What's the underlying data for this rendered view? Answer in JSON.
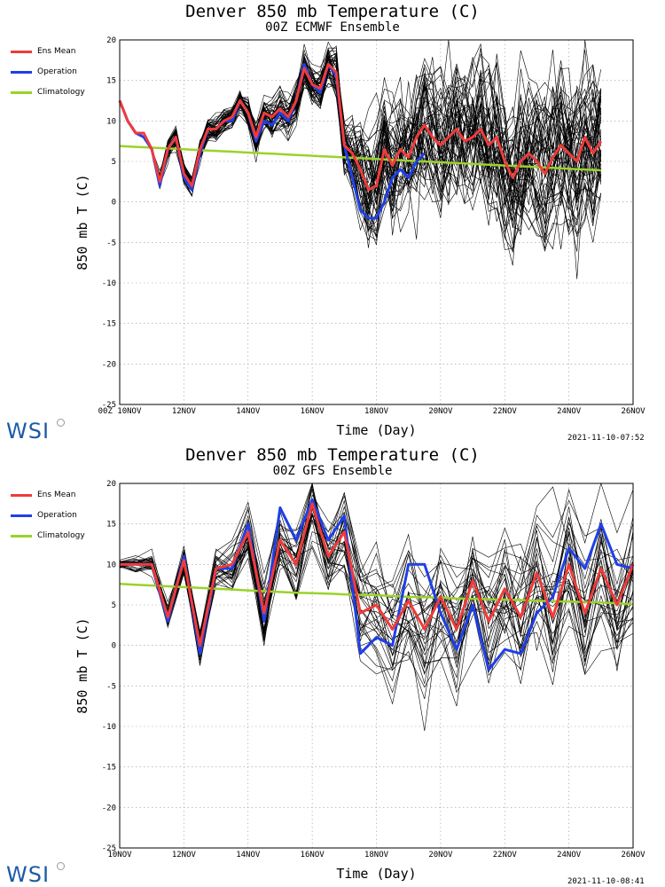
{
  "colors": {
    "members": "#000000",
    "ens_mean": "#ef3b3b",
    "operation": "#1f3fe6",
    "climatology": "#99d32a",
    "wsi_blue": "#1c5aa6"
  },
  "brand": {
    "logo_text": "WSI"
  },
  "legend": [
    {
      "label": "Ens Mean",
      "color": "#ef3b3b"
    },
    {
      "label": "Operation",
      "color": "#1f3fe6"
    },
    {
      "label": "Climatology",
      "color": "#99d32a"
    }
  ],
  "chart_data": [
    {
      "type": "line",
      "title": "Denver 850 mb Temperature (C)",
      "subtitle": "00Z ECMWF Ensemble",
      "xlabel": "Time (Day)",
      "ylabel": "850 mb T (C)",
      "timestamp": "2021-11-10-07:52",
      "grid": true,
      "ylim": [
        -25,
        20
      ],
      "yticks": [
        -25,
        -20,
        -15,
        -10,
        -5,
        0,
        5,
        10,
        15,
        20
      ],
      "xlim": [
        0,
        16
      ],
      "xtick_positions": [
        0,
        2,
        4,
        6,
        8,
        10,
        12,
        14,
        16
      ],
      "xtick_labels": [
        "00Z 10NOV",
        "12NOV",
        "14NOV",
        "16NOV",
        "18NOV",
        "20NOV",
        "22NOV",
        "24NOV",
        "26NOV"
      ],
      "x": [
        0,
        0.25,
        0.5,
        0.75,
        1,
        1.25,
        1.5,
        1.75,
        2,
        2.25,
        2.5,
        2.75,
        3,
        3.25,
        3.5,
        3.75,
        4,
        4.25,
        4.5,
        4.75,
        5,
        5.25,
        5.5,
        5.75,
        6,
        6.25,
        6.5,
        6.75,
        7,
        7.25,
        7.5,
        7.75,
        8,
        8.25,
        8.5,
        8.75,
        9,
        9.25,
        9.5,
        9.75,
        10,
        10.25,
        10.5,
        10.75,
        11,
        11.25,
        11.5,
        11.75,
        12,
        12.25,
        12.5,
        12.75,
        13,
        13.25,
        13.5,
        13.75,
        14,
        14.25,
        14.5,
        14.75,
        15
      ],
      "series": [
        {
          "name": "Ens Mean",
          "role": "ens_mean",
          "values": [
            12.5,
            10,
            8.5,
            8.5,
            6.5,
            2.5,
            6.5,
            8,
            3.5,
            2,
            6.5,
            9,
            9,
            10,
            10.5,
            12.5,
            11,
            8,
            11,
            10.5,
            11.5,
            10.5,
            12.5,
            16.5,
            14.5,
            14,
            17,
            16,
            7,
            6,
            4,
            1.5,
            2,
            6.5,
            4.5,
            6.5,
            5.5,
            8,
            9.5,
            8,
            7,
            8,
            9,
            7.5,
            8,
            9,
            7,
            8,
            5,
            3,
            5,
            6,
            5,
            3.5,
            5.5,
            7,
            6,
            5,
            8,
            6,
            7.5
          ]
        },
        {
          "name": "Operation",
          "role": "operation",
          "values": [
            12.5,
            10,
            8.5,
            8,
            6.5,
            2,
            6.5,
            8,
            3,
            1.5,
            6,
            9,
            9,
            10,
            10,
            12.5,
            11,
            7.5,
            10,
            9.5,
            11,
            10,
            12.5,
            17,
            14.5,
            13.5,
            17,
            15.5,
            7,
            3,
            -1,
            -2,
            -2,
            0,
            3,
            4,
            3,
            5,
            6,
            null,
            null,
            null,
            null,
            null,
            null,
            null,
            null,
            null,
            null,
            null,
            null,
            null,
            null,
            null,
            null,
            null,
            null,
            null,
            null,
            null,
            null
          ]
        },
        {
          "name": "Climatology",
          "role": "climatology",
          "values": [
            6.9,
            6.85,
            6.8,
            6.75,
            6.7,
            6.65,
            6.6,
            6.55,
            6.5,
            6.45,
            6.4,
            6.35,
            6.3,
            6.25,
            6.2,
            6.15,
            6.1,
            6.05,
            6.0,
            5.95,
            5.9,
            5.85,
            5.8,
            5.75,
            5.7,
            5.65,
            5.6,
            5.55,
            5.5,
            5.45,
            5.4,
            5.35,
            5.3,
            5.25,
            5.2,
            5.15,
            5.1,
            5.05,
            5.0,
            4.95,
            4.9,
            4.85,
            4.8,
            4.75,
            4.7,
            4.65,
            4.6,
            4.55,
            4.5,
            4.45,
            4.4,
            4.35,
            4.3,
            4.25,
            4.2,
            4.15,
            4.1,
            4.05,
            4.0,
            3.95,
            3.9
          ]
        }
      ],
      "members": {
        "count": 50,
        "spread_low": [
          0,
          0,
          0,
          0,
          0,
          1,
          1,
          1,
          1,
          1,
          1,
          1,
          1,
          1,
          1,
          1,
          1.5,
          1.5,
          1.5,
          2,
          2,
          2,
          2,
          2,
          2,
          2,
          2,
          3,
          3,
          4,
          5,
          5.5,
          6,
          6,
          6,
          6,
          6,
          7,
          7,
          7,
          7,
          7,
          7,
          7,
          7,
          7.5,
          7.5,
          7.5,
          7.5,
          7.5,
          7.5,
          8,
          8,
          8,
          8,
          8,
          8,
          8,
          8,
          8,
          8
        ],
        "spread_high": [
          0,
          0,
          0,
          0,
          0,
          1,
          1,
          1,
          1,
          1,
          1,
          1,
          1,
          1,
          1,
          1,
          1.5,
          1.5,
          1.5,
          2,
          2,
          2,
          2,
          2,
          2,
          2,
          2,
          3,
          3,
          4,
          5,
          5.5,
          6,
          6,
          6,
          6,
          6,
          7,
          7,
          7,
          7,
          7,
          7,
          7,
          7,
          7.5,
          7.5,
          7.5,
          7.5,
          7.5,
          7.5,
          8,
          8,
          8,
          8,
          8,
          8,
          8,
          8,
          8,
          8
        ]
      }
    },
    {
      "type": "line",
      "title": "Denver 850 mb Temperature (C)",
      "subtitle": "00Z GFS Ensemble",
      "xlabel": "Time (Day)",
      "ylabel": "850 mb T (C)",
      "timestamp": "2021-11-10-08:41",
      "grid": true,
      "ylim": [
        -25,
        20
      ],
      "yticks": [
        -25,
        -20,
        -15,
        -10,
        -5,
        0,
        5,
        10,
        15,
        20
      ],
      "xlim": [
        0,
        16
      ],
      "xtick_positions": [
        0,
        2,
        4,
        6,
        8,
        10,
        12,
        14,
        16
      ],
      "xtick_labels": [
        "10NOV",
        "12NOV",
        "14NOV",
        "16NOV",
        "18NOV",
        "20NOV",
        "22NOV",
        "24NOV",
        "26NOV"
      ],
      "x": [
        0,
        0.5,
        1,
        1.5,
        2,
        2.5,
        3,
        3.5,
        4,
        4.5,
        5,
        5.5,
        6,
        6.5,
        7,
        7.5,
        8,
        8.5,
        9,
        9.5,
        10,
        10.5,
        11,
        11.5,
        12,
        12.5,
        13,
        13.5,
        14,
        14.5,
        15,
        15.5,
        16
      ],
      "series": [
        {
          "name": "Ens Mean",
          "role": "ens_mean",
          "values": [
            10,
            10,
            10,
            3.5,
            10.5,
            0,
            9.5,
            10,
            14,
            4,
            13,
            10,
            17.5,
            11,
            14,
            4,
            5,
            2,
            5.5,
            2,
            6,
            2,
            8,
            3,
            7,
            3.5,
            9,
            3.5,
            10,
            4,
            9.5,
            5,
            10
          ]
        },
        {
          "name": "Operation",
          "role": "operation",
          "values": [
            10,
            10,
            10,
            3,
            11,
            -1,
            9.5,
            9.5,
            15,
            3,
            17,
            13,
            18,
            13,
            16,
            -1,
            1,
            0,
            10,
            10,
            4,
            -0.5,
            5,
            -3,
            -0.5,
            -1,
            4,
            6,
            12,
            9.5,
            15,
            10,
            9.5
          ]
        },
        {
          "name": "Climatology",
          "role": "climatology",
          "values": [
            7.6,
            7.5,
            7.4,
            7.3,
            7.2,
            7.1,
            7.0,
            6.9,
            6.8,
            6.7,
            6.6,
            6.5,
            6.45,
            6.4,
            6.3,
            6.25,
            6.2,
            6.1,
            6.0,
            5.95,
            5.9,
            5.8,
            5.75,
            5.7,
            5.65,
            5.6,
            5.5,
            5.45,
            5.4,
            5.35,
            5.3,
            5.2,
            5.1
          ]
        }
      ],
      "members": {
        "count": 30,
        "spread_low": [
          0.5,
          1,
          1,
          1.5,
          1.5,
          2,
          2,
          3,
          3,
          3.5,
          3.5,
          4,
          4,
          4.5,
          5,
          5,
          6,
          6,
          6,
          6,
          6.5,
          6.5,
          6.5,
          6.5,
          7,
          7,
          7,
          7,
          7,
          7,
          7,
          7,
          7
        ],
        "spread_high": [
          0.5,
          1,
          1,
          1.5,
          1.5,
          2,
          2,
          3,
          3,
          3.5,
          3.5,
          4,
          4,
          4.5,
          5,
          5,
          6,
          6,
          6,
          6,
          6.5,
          6.5,
          6.5,
          6.5,
          7,
          7,
          7,
          7,
          7,
          7,
          7,
          7,
          7
        ]
      }
    }
  ]
}
